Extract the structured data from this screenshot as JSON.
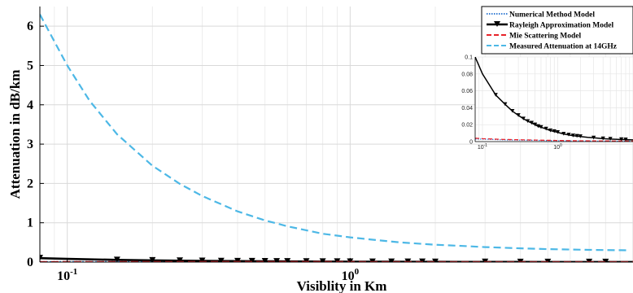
{
  "chart_data": [
    {
      "type": "line",
      "xscale": "log",
      "xlabel": "Visiblity in Km",
      "ylabel": "Attenuation in dB/km",
      "xlim": [
        0.08,
        10
      ],
      "ylim": [
        0,
        6.5
      ],
      "xticks": [
        0.1,
        1
      ],
      "yticks": [
        0,
        1,
        2,
        3,
        4,
        5,
        6
      ],
      "ytick_labels": [
        "0",
        "1",
        "2",
        "3",
        "4",
        "5",
        "6"
      ],
      "grid": true,
      "legend_position": "top-right",
      "series": [
        {
          "name": "Numerical Method Model",
          "color": "#3b7fd4",
          "style": "dotted",
          "x": [
            0.08,
            0.1,
            0.2,
            0.5,
            1,
            2,
            5,
            10
          ],
          "y": [
            0.003,
            0.003,
            0.002,
            0.0015,
            0.001,
            0.0008,
            0.0005,
            0.0004
          ]
        },
        {
          "name": "Rayleigh Approximation Model",
          "color": "#000000",
          "style": "solid",
          "marker": "triangle-down",
          "x": [
            0.08,
            0.1,
            0.15,
            0.2,
            0.25,
            0.3,
            0.35,
            0.4,
            0.45,
            0.5,
            0.55,
            0.6,
            0.7,
            0.8,
            0.9,
            1.0,
            1.2,
            1.4,
            1.6,
            1.8,
            2.0,
            2.5,
            3.0,
            4.0,
            5.0,
            7.0,
            10.0
          ],
          "y": [
            0.1,
            0.08,
            0.055,
            0.044,
            0.036,
            0.031,
            0.027,
            0.024,
            0.022,
            0.02,
            0.018,
            0.017,
            0.015,
            0.013,
            0.012,
            0.011,
            0.009,
            0.008,
            0.007,
            0.0065,
            0.006,
            0.005,
            0.0045,
            0.0035,
            0.003,
            0.0025,
            0.002
          ],
          "marker_x": [
            0.08,
            0.15,
            0.2,
            0.25,
            0.3,
            0.35,
            0.4,
            0.45,
            0.5,
            0.55,
            0.6,
            0.7,
            0.8,
            0.9,
            1.0,
            1.2,
            1.4,
            1.6,
            1.8,
            2.0,
            3.0,
            4.0,
            5.0,
            7.0,
            8.0
          ]
        },
        {
          "name": "Mie Scattering Model",
          "color": "#e8232a",
          "style": "dashed",
          "x": [
            0.08,
            0.1,
            0.2,
            0.5,
            1,
            2,
            5,
            10
          ],
          "y": [
            0.004,
            0.0035,
            0.0025,
            0.0018,
            0.0013,
            0.001,
            0.0008,
            0.0006
          ]
        },
        {
          "name": "Measured Attenuation at 14GHz",
          "color": "#4db8e6",
          "style": "dashed",
          "x": [
            0.08,
            0.1,
            0.12,
            0.15,
            0.2,
            0.25,
            0.3,
            0.4,
            0.5,
            0.6,
            0.8,
            1,
            1.2,
            1.5,
            2,
            2.5,
            3,
            4,
            5,
            7,
            9.5
          ],
          "y": [
            6.3,
            5.0,
            4.1,
            3.25,
            2.45,
            1.99,
            1.68,
            1.29,
            1.06,
            0.91,
            0.72,
            0.63,
            0.57,
            0.5,
            0.44,
            0.41,
            0.38,
            0.35,
            0.33,
            0.31,
            0.3
          ]
        }
      ]
    },
    {
      "type": "line",
      "xscale": "log",
      "inset": true,
      "xlim": [
        0.08,
        10
      ],
      "ylim": [
        0,
        0.1
      ],
      "xticks": [
        0.1,
        1
      ],
      "yticks": [
        0,
        0.02,
        0.04,
        0.06,
        0.08,
        0.1
      ],
      "ytick_labels": [
        "0",
        "0.02",
        "0.04",
        "0.06",
        "0.08",
        "0.1"
      ],
      "grid": true,
      "series_ref": "same series as main plot"
    }
  ]
}
